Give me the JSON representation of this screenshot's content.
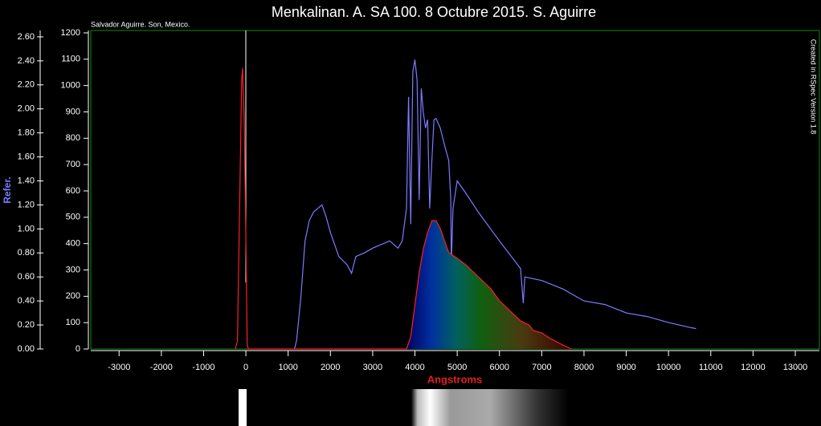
{
  "chart_data": {
    "type": "line",
    "title": "Menkalinan. A. SA 100. 8 Octubre 2015. S. Aguirre",
    "subtitle": "Salvador Aguirre. Son, Mexico.",
    "annotation": "Created in RSpec Version 1.8",
    "xlabel": "Angstroms",
    "y2label": "Refer.",
    "xlim": [
      -3670,
      13570
    ],
    "xticks": [
      -3000,
      -2000,
      -1000,
      0,
      1000,
      2000,
      3000,
      4000,
      5000,
      6000,
      7000,
      8000,
      9000,
      10000,
      11000,
      12000,
      13000
    ],
    "ylim": [
      0,
      1209
    ],
    "yticks": [
      0,
      100,
      200,
      300,
      400,
      500,
      600,
      700,
      800,
      900,
      1000,
      1100,
      1200
    ],
    "y2lim": [
      0,
      2.653
    ],
    "y2ticks": [
      {
        "value": 0,
        "label": "0.00"
      },
      {
        "value": 0.2,
        "label": "0.20"
      },
      {
        "value": 0.4,
        "label": "0.40"
      },
      {
        "value": 0.6,
        "label": "0.60"
      },
      {
        "value": 0.8,
        "label": "0.80"
      },
      {
        "value": 1.0,
        "label": "1.00"
      },
      {
        "value": 1.2,
        "label": "1.20"
      },
      {
        "value": 1.4,
        "label": "1.40"
      },
      {
        "value": 1.6,
        "label": "1.60"
      },
      {
        "value": 1.8,
        "label": "1.80"
      },
      {
        "value": 2.0,
        "label": "2.00"
      },
      {
        "value": 2.2,
        "label": "2.20"
      },
      {
        "value": 2.4,
        "label": "2.40"
      },
      {
        "value": 2.6,
        "label": "2.60"
      }
    ],
    "series": [
      {
        "color": "#7b7bff",
        "axis": "y2",
        "x": [
          1150,
          1200,
          1300,
          1400,
          1500,
          1600,
          1700,
          1800,
          1900,
          2000,
          2200,
          2400,
          2500,
          2600,
          2800,
          3000,
          3200,
          3400,
          3600,
          3700,
          3800,
          3850,
          3900,
          3950,
          4000,
          4050,
          4100,
          4150,
          4200,
          4250,
          4300,
          4350,
          4400,
          4450,
          4500,
          4600,
          4700,
          4800,
          4850,
          4861,
          4900,
          5000,
          5200,
          5500,
          6000,
          6500,
          6563,
          6600,
          7000,
          7500,
          8000,
          8500,
          9000,
          9500,
          10000,
          10500,
          10650
        ],
        "values": [
          0,
          0.07,
          0.43,
          0.9,
          1.07,
          1.14,
          1.17,
          1.2,
          1.1,
          0.97,
          0.77,
          0.7,
          0.63,
          0.77,
          0.8,
          0.84,
          0.87,
          0.9,
          0.84,
          0.9,
          1.17,
          2.1,
          1.04,
          2.31,
          2.41,
          2.24,
          1.24,
          2.17,
          1.97,
          1.84,
          1.91,
          1.17,
          1.57,
          1.91,
          1.92,
          1.84,
          1.7,
          1.57,
          1.24,
          0.7,
          1.17,
          1.4,
          1.3,
          1.14,
          0.9,
          0.67,
          0.38,
          0.6,
          0.57,
          0.5,
          0.4,
          0.37,
          0.3,
          0.27,
          0.22,
          0.18,
          0.17
        ]
      },
      {
        "color": "#ff2020",
        "axis": "y",
        "x": [
          -250,
          -200,
          -100,
          -80,
          -40,
          0,
          30,
          60,
          3800,
          3900,
          4000,
          4100,
          4200,
          4300,
          4400,
          4500,
          4600,
          4700,
          4800,
          5000,
          5200,
          5500,
          5800,
          6000,
          6300,
          6500,
          6700,
          6800,
          7000,
          7200,
          7500,
          7700
        ],
        "values": [
          0,
          30,
          1020,
          1066,
          868,
          411,
          15,
          0,
          0,
          46,
          168,
          289,
          381,
          442,
          487,
          487,
          457,
          411,
          366,
          344,
          320,
          274,
          228,
          183,
          137,
          107,
          91,
          70,
          61,
          40,
          15,
          0
        ]
      }
    ]
  }
}
